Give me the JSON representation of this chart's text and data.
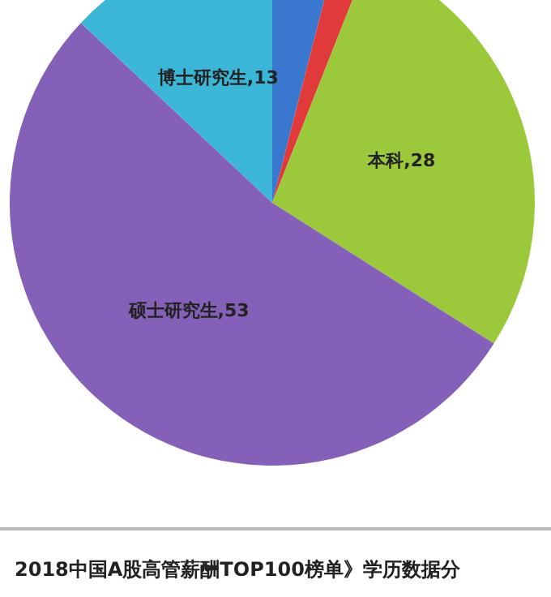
{
  "chart_data": {
    "type": "pie",
    "title": "2018中国A股高管薪酬TOP100榜单》学历数据分",
    "categories": [
      null,
      null,
      "本科",
      "硕士研究生",
      "博士研究生"
    ],
    "values": [
      4,
      2,
      28,
      53,
      13
    ],
    "value_labels": [
      null,
      null,
      "28",
      "53",
      "13"
    ],
    "colors": [
      "#3a78d0",
      "#e03a3a",
      "#9cc83c",
      "#8560b8",
      "#3bb6d6"
    ],
    "legend": false
  }
}
